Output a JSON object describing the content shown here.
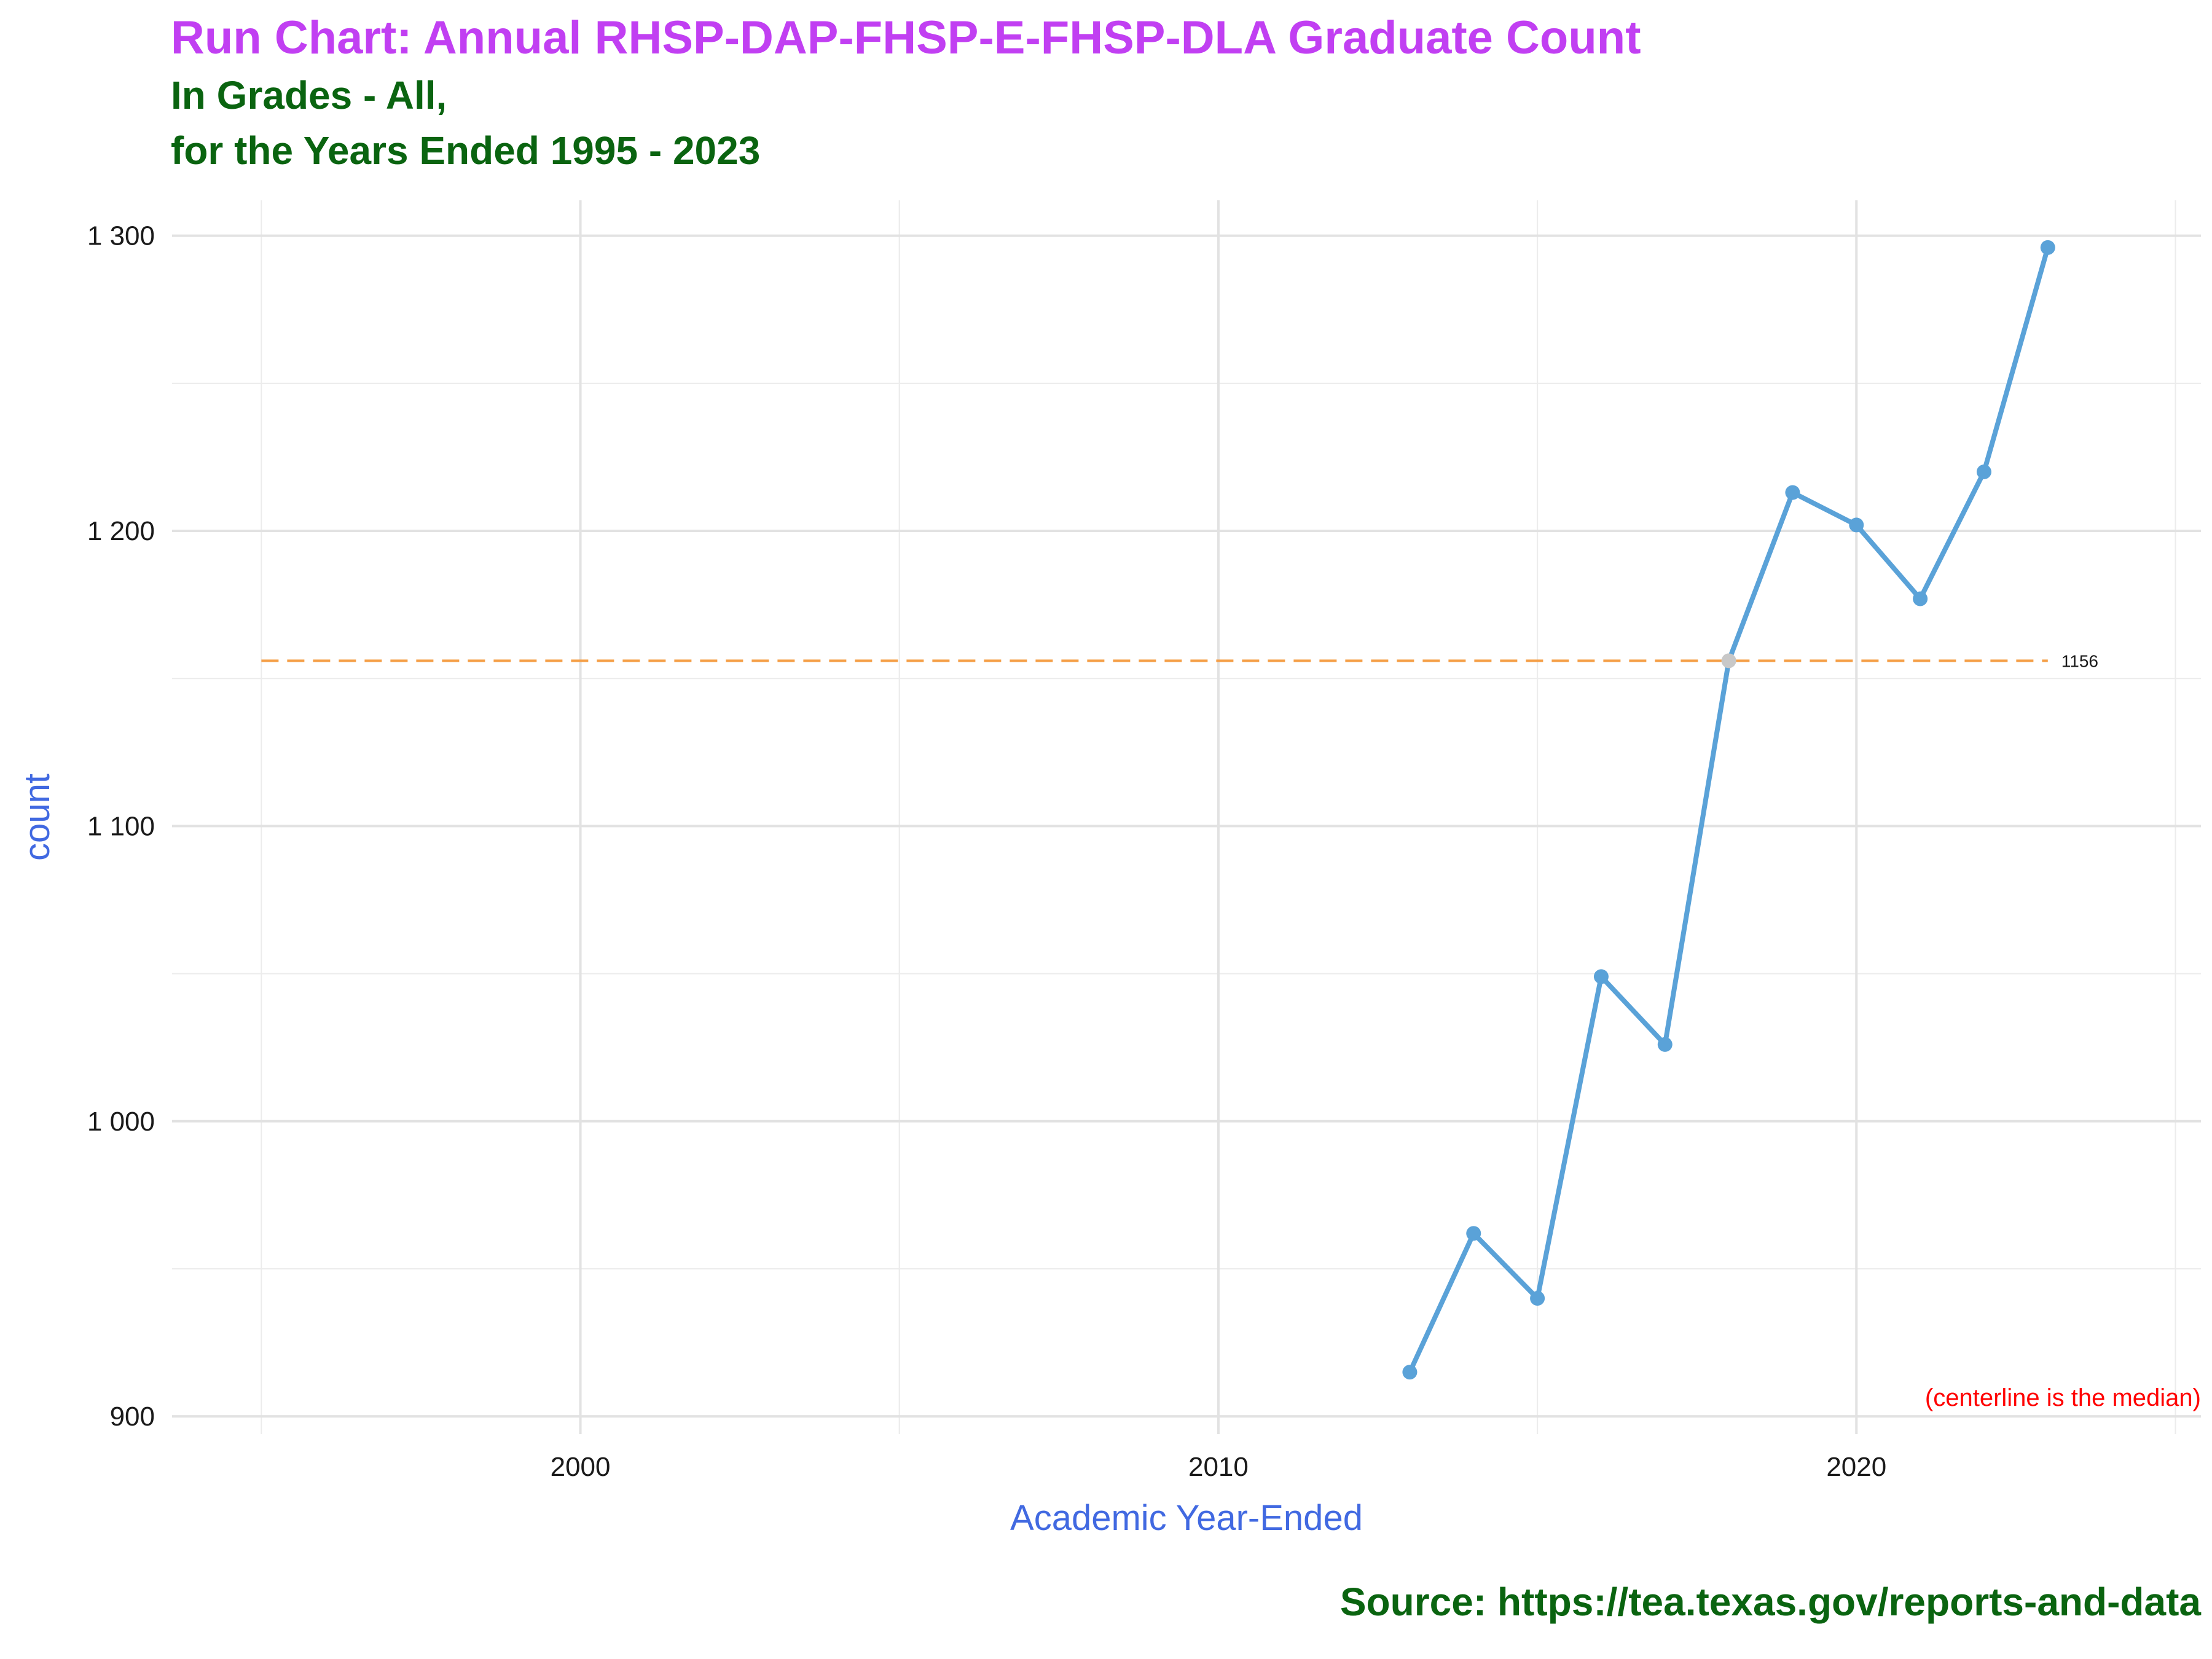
{
  "title": "Run Chart: Annual RHSP-DAP-FHSP-E-FHSP-DLA Graduate Count",
  "subtitle_line1": "In Grades - All,",
  "subtitle_line2": "for the Years Ended 1995 - 2023",
  "source": "Source:  https://tea.texas.gov/reports-and-data",
  "colors": {
    "title": "#c13ff2",
    "subtitle": "#0a6410",
    "series": "#5aa2d8",
    "highlight_point": "#c8c8c8",
    "median_line": "#f5a04a",
    "axis_label": "#4169e1",
    "note": "#ff0000"
  },
  "chart_data": {
    "type": "line",
    "xlabel": "Academic Year-Ended",
    "ylabel": "count",
    "xlim": [
      1993.6,
      2025.4
    ],
    "ylim": [
      894,
      1312
    ],
    "x_ticks": [
      2000,
      2010,
      2020
    ],
    "x_tick_labels": [
      "2000",
      "2010",
      "2020"
    ],
    "y_ticks": [
      900,
      1000,
      1100,
      1200,
      1300
    ],
    "y_tick_labels": [
      "900",
      "1 000",
      "1 100",
      "1 200",
      "1 300"
    ],
    "grid": true,
    "series": [
      {
        "x": [
          2013,
          2014,
          2015,
          2016,
          2017,
          2018,
          2019,
          2020,
          2021,
          2022,
          2023
        ],
        "y": [
          915,
          962,
          940,
          1049,
          1026,
          1156,
          1213,
          1202,
          1177,
          1220,
          1296
        ]
      }
    ],
    "highlight_x": [
      2018
    ],
    "median": 1156,
    "median_label": "1156",
    "median_from_x": 1995,
    "median_to_x": 2023,
    "note": "(centerline is the median)"
  }
}
